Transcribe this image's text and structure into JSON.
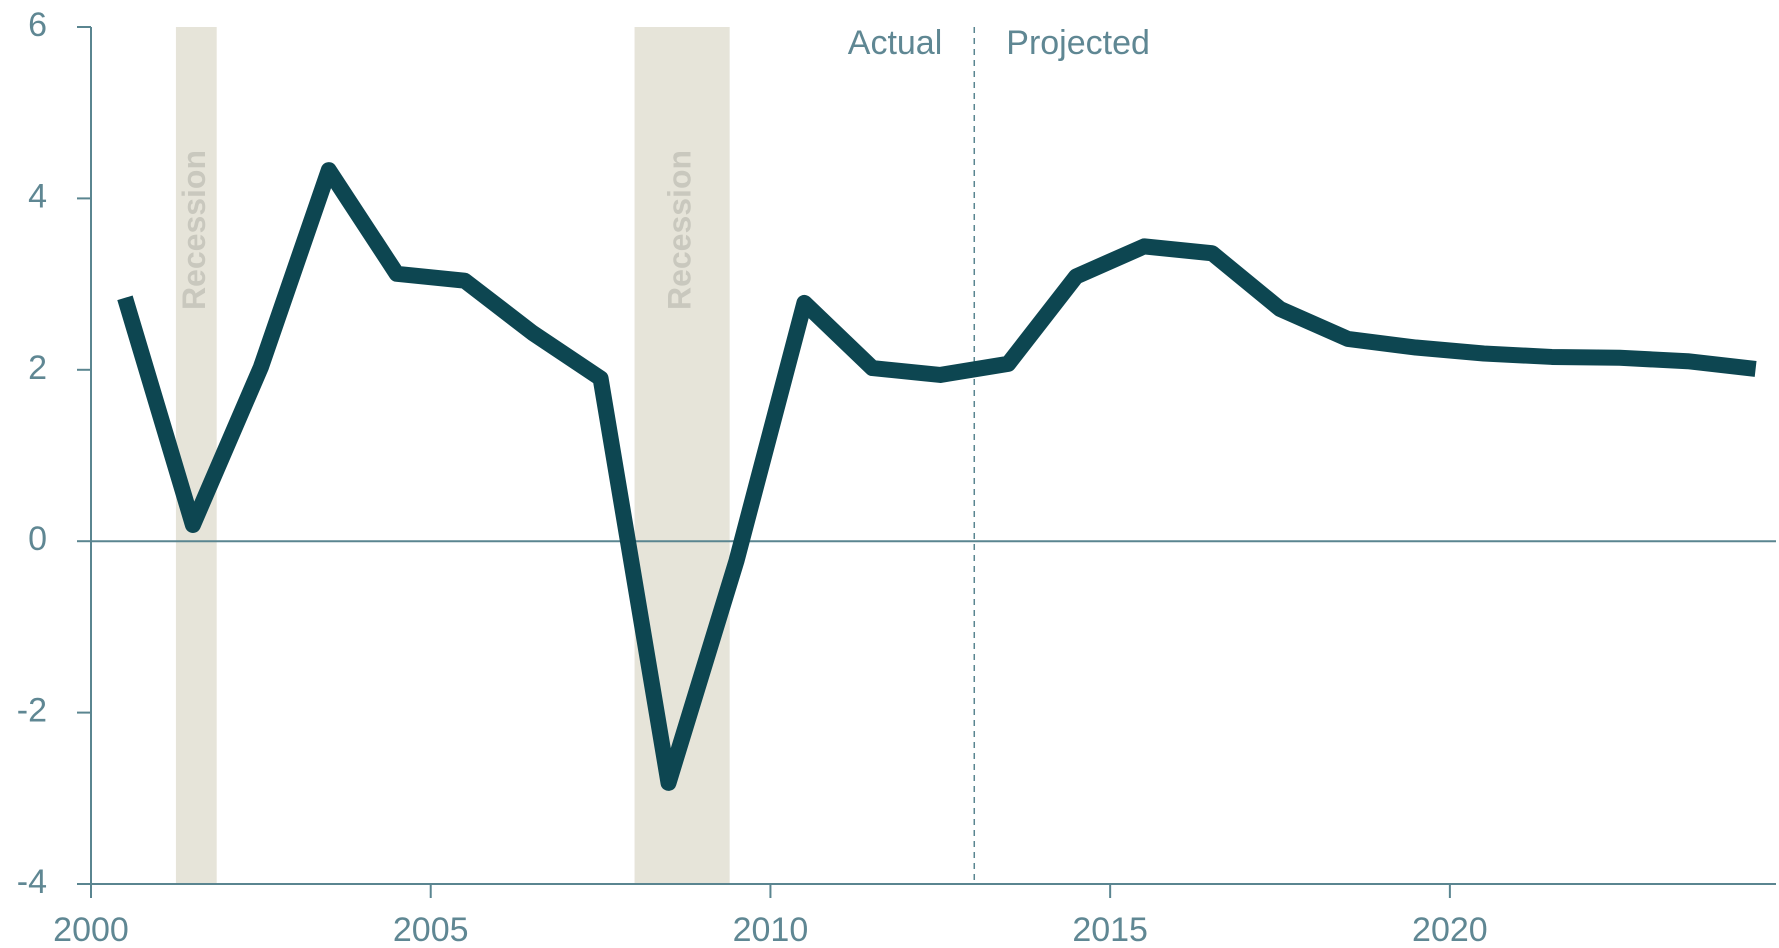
{
  "chart_data": {
    "type": "line",
    "x": [
      2000.5,
      2001.5,
      2002.5,
      2003.5,
      2004.5,
      2005.5,
      2006.5,
      2007.5,
      2008.5,
      2009.5,
      2010.5,
      2011.5,
      2012.5,
      2013.5,
      2014.5,
      2015.5,
      2016.5,
      2017.5,
      2018.5,
      2019.5,
      2020.5,
      2021.5,
      2022.5,
      2023.5,
      2024.5
    ],
    "values": [
      2.84,
      0.19,
      2.03,
      4.33,
      3.12,
      3.04,
      2.43,
      1.9,
      -2.82,
      -0.23,
      2.78,
      2.02,
      1.94,
      2.07,
      3.09,
      3.44,
      3.36,
      2.71,
      2.36,
      2.26,
      2.19,
      2.15,
      2.14,
      2.1,
      2.01
    ],
    "color": "#0d4651",
    "xlim": [
      2000,
      2024.8
    ],
    "xticks": [
      2000,
      2005,
      2010,
      2015,
      2020
    ],
    "ylim": [
      -4,
      6
    ],
    "yticks": [
      -4,
      -2,
      0,
      2,
      4,
      6
    ],
    "recessions": [
      {
        "start": 2001.25,
        "end": 2001.85,
        "label": "Recession"
      },
      {
        "start": 2008.0,
        "end": 2009.4,
        "label": "Recession"
      }
    ],
    "divider": {
      "x": 2013,
      "left_label": "Actual",
      "right_label": "Projected"
    }
  }
}
